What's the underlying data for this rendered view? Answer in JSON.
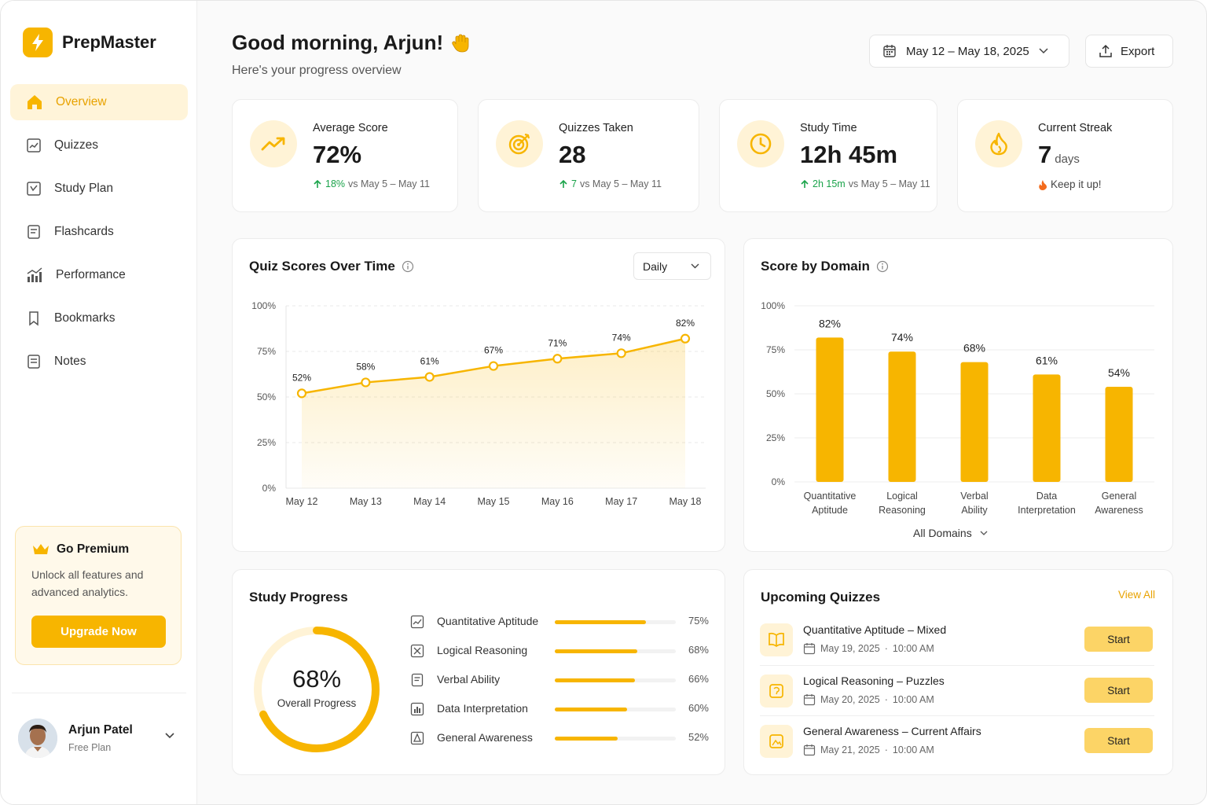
{
  "brand": {
    "name": "PrepMaster"
  },
  "sidebar": {
    "items": [
      {
        "label": "Overview",
        "icon": "home-icon",
        "active": true
      },
      {
        "label": "Quizzes",
        "icon": "quiz-icon"
      },
      {
        "label": "Study Plan",
        "icon": "study-plan-icon"
      },
      {
        "label": "Flashcards",
        "icon": "flashcards-icon"
      },
      {
        "label": "Performance",
        "icon": "performance-icon"
      },
      {
        "label": "Bookmarks",
        "icon": "bookmark-icon"
      },
      {
        "label": "Notes",
        "icon": "notes-icon"
      }
    ],
    "premium": {
      "title": "Go Premium",
      "description": "Unlock all features and advanced analytics.",
      "button": "Upgrade Now"
    },
    "user": {
      "name": "Arjun Patel",
      "plan": "Free Plan"
    }
  },
  "header": {
    "greeting": "Good morning, Arjun!",
    "subtitle": "Here's your progress overview",
    "date_range": "May 12 – May 18, 2025",
    "export_label": "Export"
  },
  "stats": [
    {
      "label": "Average Score",
      "value": "72%",
      "unit": "",
      "delta": "18%",
      "compare": "vs May 5 – May 11",
      "icon": "trend-up-icon"
    },
    {
      "label": "Quizzes Taken",
      "value": "28",
      "unit": "",
      "delta": "7",
      "compare": "vs May 5 – May 11",
      "icon": "target-icon"
    },
    {
      "label": "Study Time",
      "value": "12h 45m",
      "unit": "",
      "delta": "2h 15m",
      "compare": "vs May 5 – May 11",
      "icon": "clock-icon"
    },
    {
      "label": "Current Streak",
      "value": "7",
      "unit": "days",
      "delta": "",
      "compare": "Keep it up!",
      "icon": "flame-icon"
    }
  ],
  "quiz_scores": {
    "title": "Quiz Scores Over Time",
    "period": "Daily"
  },
  "score_by_domain": {
    "title": "Score by Domain",
    "filter": "All Domains"
  },
  "chart_data": [
    {
      "type": "line",
      "x": [
        "May 12",
        "May 13",
        "May 14",
        "May 15",
        "May 16",
        "May 17",
        "May 18"
      ],
      "series": [
        {
          "values": [
            52,
            58,
            61,
            67,
            71,
            74,
            82
          ]
        }
      ],
      "data_labels": [
        "52%",
        "58%",
        "61%",
        "67%",
        "71%",
        "74%",
        "82%"
      ],
      "y_ticks": [
        "0%",
        "25%",
        "50%",
        "75%",
        "100%"
      ],
      "ylim": [
        0,
        100
      ],
      "grid": true,
      "color": "#f7b500"
    },
    {
      "type": "bar",
      "categories": [
        [
          "Quantitative",
          "Aptitude"
        ],
        [
          "Logical",
          "Reasoning"
        ],
        [
          "Verbal",
          "Ability"
        ],
        [
          "Data",
          "Interpretation"
        ],
        [
          "General",
          "Awareness"
        ]
      ],
      "values": [
        82,
        74,
        68,
        61,
        54
      ],
      "data_labels": [
        "82%",
        "74%",
        "68%",
        "61%",
        "54%"
      ],
      "y_ticks": [
        "0%",
        "25%",
        "50%",
        "75%",
        "100%"
      ],
      "ylim": [
        0,
        100
      ],
      "grid": true,
      "color": "#f7b500"
    }
  ],
  "study_progress": {
    "title": "Study Progress",
    "overall_value": "68%",
    "overall_fraction": 0.68,
    "overall_label": "Overall Progress",
    "items": [
      {
        "label": "Quantitative Aptitude",
        "percent": 75,
        "value": "75%",
        "icon": "chart-icon"
      },
      {
        "label": "Logical Reasoning",
        "percent": 68,
        "value": "68%",
        "icon": "puzzle-icon"
      },
      {
        "label": "Verbal Ability",
        "percent": 66,
        "value": "66%",
        "icon": "document-icon"
      },
      {
        "label": "Data Interpretation",
        "percent": 60,
        "value": "60%",
        "icon": "data-chart-icon"
      },
      {
        "label": "General Awareness",
        "percent": 52,
        "value": "52%",
        "icon": "globe-icon"
      }
    ]
  },
  "upcoming": {
    "title": "Upcoming Quizzes",
    "view_all": "View All",
    "items": [
      {
        "name": "Quantitative Aptitude – Mixed",
        "date": "May 19, 2025",
        "time": "10:00 AM",
        "button": "Start",
        "icon": "book-icon"
      },
      {
        "name": "Logical Reasoning – Puzzles",
        "date": "May 20, 2025",
        "time": "10:00 AM",
        "button": "Start",
        "icon": "brain-icon"
      },
      {
        "name": "General Awareness – Current Affairs",
        "date": "May 21, 2025",
        "time": "10:00 AM",
        "button": "Start",
        "icon": "image-icon"
      }
    ]
  },
  "colors": {
    "accent": "#f7b500",
    "accent_light": "#fff3d6",
    "success": "#1aa34a"
  }
}
